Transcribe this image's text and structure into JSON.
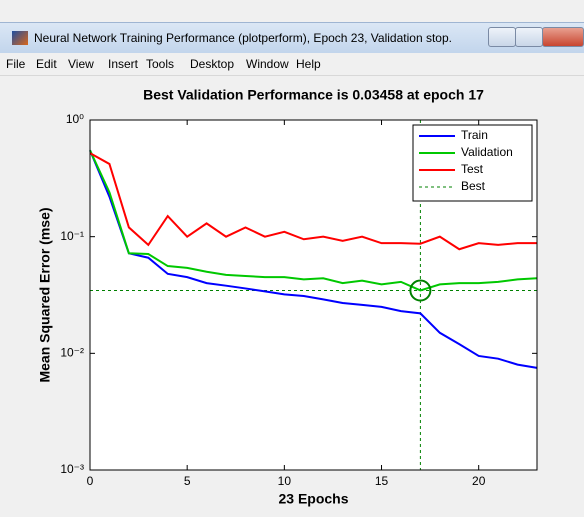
{
  "window": {
    "title": "Neural Network Training Performance (plotperform), Epoch 23, Validation stop.",
    "menu": [
      "File",
      "Edit",
      "View",
      "Insert",
      "Tools",
      "Desktop",
      "Window",
      "Help"
    ]
  },
  "chart_data": {
    "type": "line",
    "title": "Best Validation Performance is 0.03458 at epoch 17",
    "xlabel": "23 Epochs",
    "ylabel": "Mean Squared Error  (mse)",
    "x": [
      0,
      1,
      2,
      3,
      4,
      5,
      6,
      7,
      8,
      9,
      10,
      11,
      12,
      13,
      14,
      15,
      16,
      17,
      18,
      19,
      20,
      21,
      22,
      23
    ],
    "series": [
      {
        "name": "Train",
        "color": "#0000ff",
        "values": [
          0.55,
          0.22,
          0.072,
          0.066,
          0.048,
          0.045,
          0.04,
          0.038,
          0.036,
          0.034,
          0.032,
          0.031,
          0.029,
          0.027,
          0.026,
          0.025,
          0.023,
          0.022,
          0.015,
          0.012,
          0.0095,
          0.009,
          0.008,
          0.0075
        ]
      },
      {
        "name": "Validation",
        "color": "#00c800",
        "values": [
          0.55,
          0.24,
          0.072,
          0.071,
          0.056,
          0.054,
          0.05,
          0.047,
          0.046,
          0.045,
          0.045,
          0.043,
          0.044,
          0.04,
          0.042,
          0.039,
          0.041,
          0.03458,
          0.039,
          0.04,
          0.04,
          0.041,
          0.043,
          0.044
        ]
      },
      {
        "name": "Test",
        "color": "#ff0000",
        "values": [
          0.52,
          0.42,
          0.12,
          0.085,
          0.15,
          0.1,
          0.13,
          0.1,
          0.12,
          0.1,
          0.11,
          0.095,
          0.1,
          0.092,
          0.1,
          0.088,
          0.088,
          0.087,
          0.1,
          0.078,
          0.088,
          0.085,
          0.088,
          0.088
        ]
      }
    ],
    "best": {
      "name": "Best",
      "epoch": 17,
      "value": 0.03458,
      "color": "#008000"
    },
    "xlim": [
      0,
      23
    ],
    "xticks": [
      0,
      5,
      10,
      15,
      20
    ],
    "ylim": [
      0.001,
      1
    ],
    "log_y": true,
    "yticks": [
      {
        "value": 0.001,
        "label": "10⁻³"
      },
      {
        "value": 0.01,
        "label": "10⁻²"
      },
      {
        "value": 0.1,
        "label": "10⁻¹"
      },
      {
        "value": 1,
        "label": "10⁰"
      }
    ],
    "legend": "upper right"
  }
}
